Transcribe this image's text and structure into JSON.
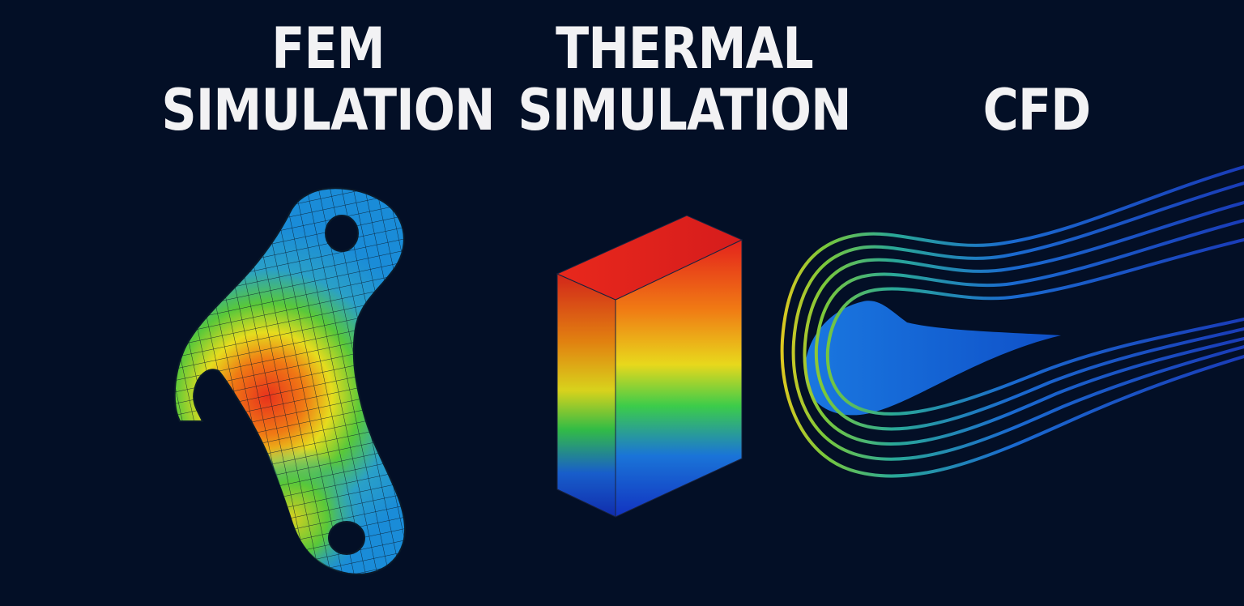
{
  "titles": {
    "fem": {
      "line1": "FEM",
      "line2": "SIMULATION"
    },
    "thermal": {
      "line1": "THERMAL",
      "line2": "SIMULATION"
    },
    "cfd": {
      "line1": "CFD"
    }
  },
  "illustrations": {
    "fem": "meshed-bracket-stress-contour",
    "thermal": "block-temperature-gradient",
    "cfd": "airfoil-streamlines"
  },
  "colors": {
    "background": "#030f26",
    "title_text": "#f2f2f4",
    "scale_hot": "#e4221c",
    "scale_warm": "#f08a12",
    "scale_mid": "#e8e01c",
    "scale_cool": "#36c84a",
    "scale_cold": "#1a64d8"
  }
}
